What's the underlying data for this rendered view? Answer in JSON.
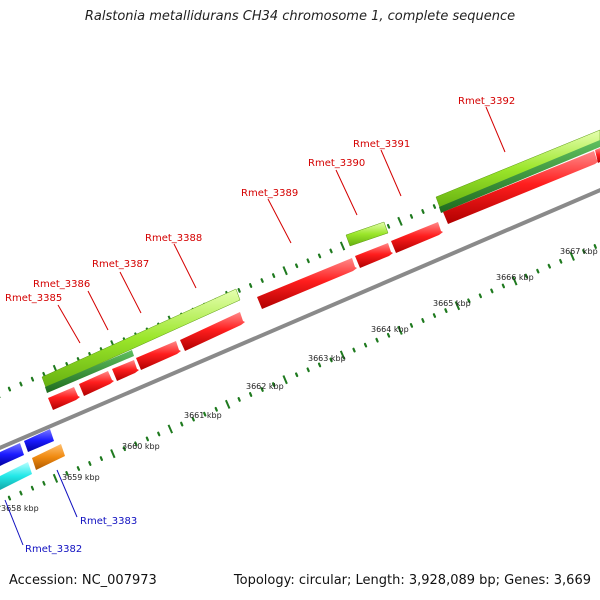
{
  "title": "Ralstonia metallidurans CH34 chromosome 1, complete sequence",
  "footer": {
    "accession_label": "Accession:",
    "accession": "NC_007973",
    "stats": "Topology: circular; Length: 3,928,089 bp; Genes: 3,669"
  },
  "colors": {
    "forward_gene": "#e81818",
    "cds_light_green": "#9be62a",
    "cds_dark_green": "#2e8b2e",
    "reverse_blue": "#1a1aff",
    "reverse_cyan": "#22e8e8",
    "reverse_orange": "#f08a10",
    "backbone": "#8a8a8a",
    "forward_label": "#d40000",
    "reverse_label": "#1010c0",
    "tick": "#1f7a1f"
  },
  "ticks": [
    "3658 kbp",
    "3659 kbp",
    "3660 kbp",
    "3661 kbp",
    "3662 kbp",
    "3663 kbp",
    "3664 kbp",
    "3665 kbp",
    "3666 kbp",
    "3667 kbp"
  ],
  "forward_labels": [
    "Rmet_3385",
    "Rmet_3386",
    "Rmet_3387",
    "Rmet_3388",
    "Rmet_3389",
    "Rmet_3390",
    "Rmet_3391",
    "Rmet_3392"
  ],
  "reverse_labels": [
    "Rmet_3382",
    "Rmet_3383"
  ]
}
